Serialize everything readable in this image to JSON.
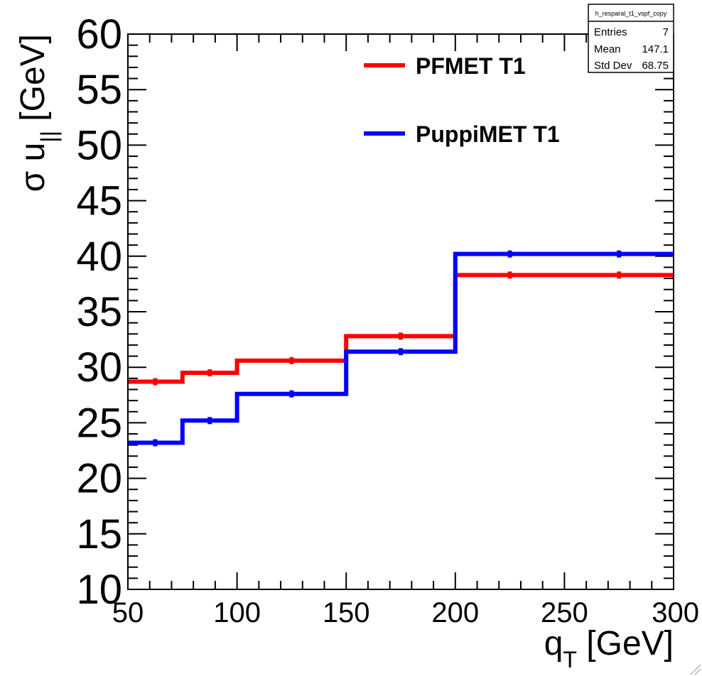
{
  "chart_data": {
    "type": "line",
    "step": true,
    "title": "",
    "xlabel": "q_T [GeV]",
    "xlabel_main": "q",
    "xlabel_sub": "T",
    "xlabel_rest": " [GeV]",
    "ylabel_main": "σ u",
    "ylabel_sub": "||",
    "ylabel_rest": " [GeV]",
    "xlim": [
      50,
      300
    ],
    "ylim": [
      10,
      60
    ],
    "x_ticks": [
      "50",
      "100",
      "150",
      "200",
      "250",
      "300"
    ],
    "y_ticks": [
      "10",
      "15",
      "20",
      "25",
      "30",
      "35",
      "40",
      "45",
      "50",
      "55",
      "60"
    ],
    "bin_edges": [
      50,
      75,
      100,
      150,
      200,
      250,
      300
    ],
    "series": [
      {
        "name": "PFMET T1",
        "color": "#ff0000",
        "values": [
          28.7,
          29.5,
          30.6,
          32.8,
          38.3,
          38.3
        ]
      },
      {
        "name": "PuppiMET T1",
        "color": "#0000ff",
        "values": [
          23.2,
          25.2,
          27.6,
          31.4,
          40.2,
          40.2
        ]
      }
    ],
    "legend_placement": "top-center",
    "grid": false
  },
  "stats_box": {
    "title": "h_resparal_t1_vspf_copy",
    "rows": [
      {
        "label": "Entries",
        "value": "7"
      },
      {
        "label": "Mean",
        "value": "147.1"
      },
      {
        "label": "Std Dev",
        "value": "68.75"
      }
    ]
  }
}
